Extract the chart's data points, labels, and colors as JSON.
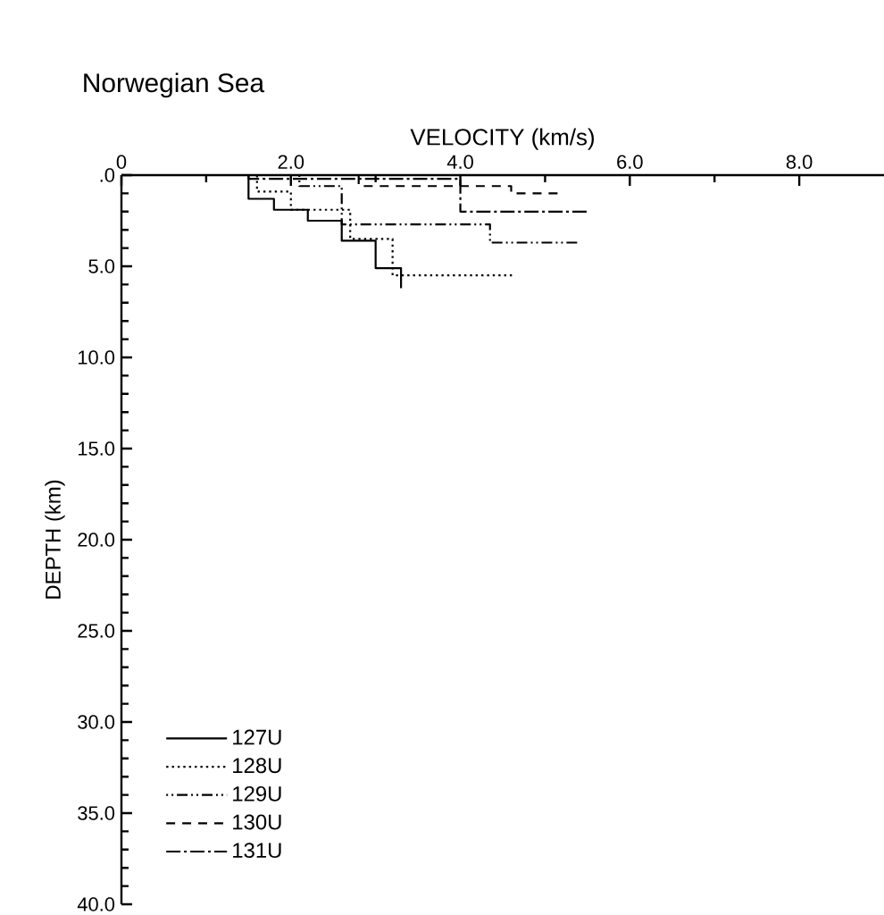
{
  "chart_data": {
    "type": "line",
    "title": "Norwegian Sea",
    "xlabel": "VELOCITY (km/s)",
    "ylabel": "DEPTH (km)",
    "xlim": [
      0,
      9
    ],
    "ylim": [
      40,
      0
    ],
    "xticks": [
      {
        "value": 0,
        "label": "0"
      },
      {
        "value": 2,
        "label": "2.0"
      },
      {
        "value": 4,
        "label": "4.0"
      },
      {
        "value": 6,
        "label": "6.0"
      },
      {
        "value": 8,
        "label": "8.0"
      }
    ],
    "yticks": [
      {
        "value": 0,
        "label": ".0"
      },
      {
        "value": 5,
        "label": "5.0"
      },
      {
        "value": 10,
        "label": "10.0"
      },
      {
        "value": 15,
        "label": "15.0"
      },
      {
        "value": 20,
        "label": "20.0"
      },
      {
        "value": 25,
        "label": "25.0"
      },
      {
        "value": 30,
        "label": "30.0"
      },
      {
        "value": 35,
        "label": "35.0"
      },
      {
        "value": 40,
        "label": "40.0"
      }
    ],
    "legend": "bottom left",
    "grid": false,
    "series": [
      {
        "name": "127U",
        "color": "#000000",
        "line_style": "solid",
        "x": [
          1.5,
          1.5,
          1.8,
          1.8,
          2.2,
          2.2,
          2.6,
          2.6,
          3.0,
          3.0,
          3.3,
          3.3
        ],
        "values": [
          0,
          1.3,
          1.3,
          1.9,
          1.9,
          2.5,
          2.5,
          3.6,
          3.6,
          5.1,
          5.1,
          6.2
        ]
      },
      {
        "name": "128U",
        "color": "#000000",
        "line_style": "dotted",
        "x": [
          1.6,
          1.6,
          2.0,
          2.0,
          2.7,
          2.7,
          3.2,
          3.2,
          4.65
        ],
        "values": [
          0,
          0.9,
          0.9,
          1.9,
          1.9,
          3.5,
          3.5,
          5.5,
          5.5
        ]
      },
      {
        "name": "129U",
        "color": "#000000",
        "line_style": "dashdotdot",
        "x": [
          2.1,
          2.1,
          2.6,
          2.6,
          4.35,
          4.35,
          5.4
        ],
        "values": [
          0,
          0.6,
          0.6,
          2.7,
          2.7,
          3.7,
          3.7
        ]
      },
      {
        "name": "130U",
        "color": "#000000",
        "line_style": "dashed",
        "x": [
          2.8,
          2.8,
          4.6,
          4.6,
          5.2
        ],
        "values": [
          0,
          0.6,
          0.6,
          1.0,
          1.0
        ]
      },
      {
        "name": "131U",
        "color": "#000000",
        "line_style": "longdashdot",
        "x": [
          1.5,
          1.5,
          4.0,
          4.0,
          5.5
        ],
        "values": [
          0,
          0.2,
          0.2,
          2.0,
          2.0
        ]
      }
    ]
  }
}
